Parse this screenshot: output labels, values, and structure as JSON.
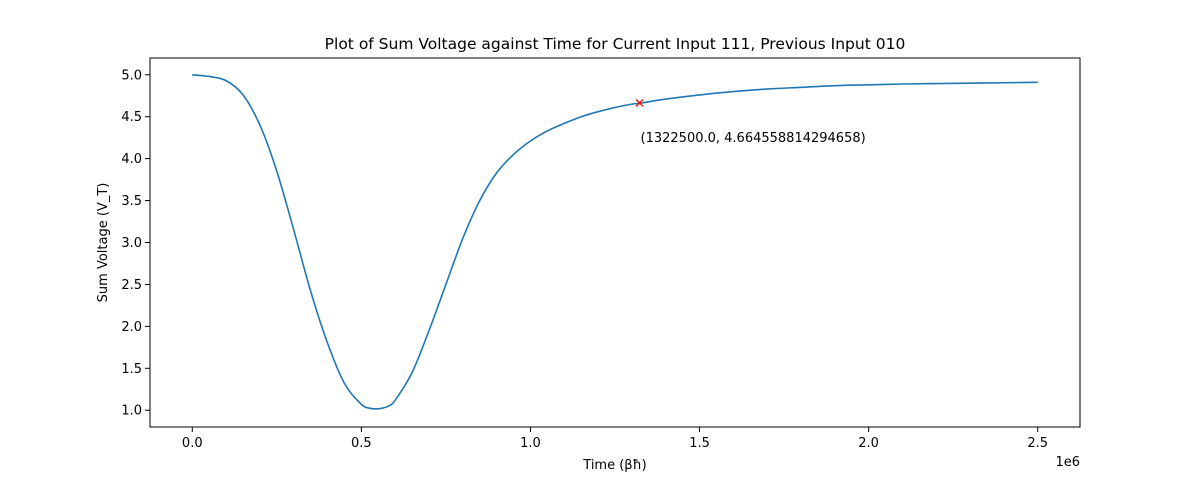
{
  "chart_data": {
    "type": "line",
    "title": "Plot of Sum Voltage against Time for Current Input 111, Previous Input 010",
    "xlabel": "Time (βħ)",
    "ylabel": "Sum Voltage (V_T)",
    "xlim": [
      -125000,
      2625000
    ],
    "ylim": [
      0.8,
      5.2
    ],
    "x_offset_label": "1e6",
    "x_ticks": [
      {
        "value": 0,
        "label": "0.0"
      },
      {
        "value": 500000,
        "label": "0.5"
      },
      {
        "value": 1000000,
        "label": "1.0"
      },
      {
        "value": 1500000,
        "label": "1.5"
      },
      {
        "value": 2000000,
        "label": "2.0"
      },
      {
        "value": 2500000,
        "label": "2.5"
      }
    ],
    "y_ticks": [
      {
        "value": 1.0,
        "label": "1.0"
      },
      {
        "value": 1.5,
        "label": "1.5"
      },
      {
        "value": 2.0,
        "label": "2.0"
      },
      {
        "value": 2.5,
        "label": "2.5"
      },
      {
        "value": 3.0,
        "label": "3.0"
      },
      {
        "value": 3.5,
        "label": "3.5"
      },
      {
        "value": 4.0,
        "label": "4.0"
      },
      {
        "value": 4.5,
        "label": "4.5"
      },
      {
        "value": 5.0,
        "label": "5.0"
      }
    ],
    "grid": false,
    "series": [
      {
        "color": "#1f77b4",
        "x": [
          0,
          50000,
          100000,
          150000,
          200000,
          250000,
          300000,
          350000,
          400000,
          450000,
          500000,
          530000,
          555000,
          580000,
          600000,
          650000,
          700000,
          750000,
          800000,
          850000,
          900000,
          950000,
          1000000,
          1050000,
          1100000,
          1150000,
          1200000,
          1250000,
          1300000,
          1322500,
          1400000,
          1500000,
          1600000,
          1700000,
          1800000,
          1900000,
          2000000,
          2100000,
          2200000,
          2300000,
          2400000,
          2500000
        ],
        "y": [
          5.0,
          4.98,
          4.93,
          4.76,
          4.4,
          3.85,
          3.15,
          2.42,
          1.8,
          1.32,
          1.07,
          1.02,
          1.02,
          1.05,
          1.12,
          1.45,
          1.95,
          2.5,
          3.05,
          3.5,
          3.83,
          4.05,
          4.21,
          4.33,
          4.42,
          4.5,
          4.56,
          4.61,
          4.65,
          4.66,
          4.71,
          4.76,
          4.8,
          4.83,
          4.85,
          4.87,
          4.88,
          4.89,
          4.895,
          4.9,
          4.905,
          4.91
        ]
      }
    ],
    "marker": {
      "x": 1322500.0,
      "y": 4.664558814294658,
      "color": "#ff0000",
      "label": "(1322500.0, 4.664558814294658)"
    }
  }
}
